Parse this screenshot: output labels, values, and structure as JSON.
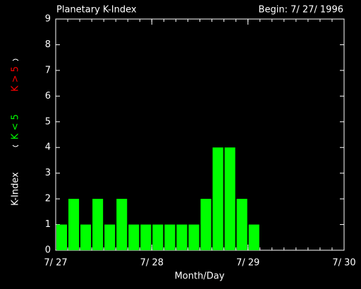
{
  "chart_data": {
    "type": "bar",
    "title": "Planetary K-Index",
    "subtitle": "Begin: 7/ 27/ 1996",
    "xlabel": "Month/Day",
    "ylabel": "K-Index",
    "legend": [
      {
        "name": "K < 5",
        "color": "#00ff00"
      },
      {
        "name": "K > 5",
        "color": "#ff0000"
      }
    ],
    "categories": [
      null,
      null,
      null,
      null,
      null,
      null,
      null,
      null,
      null,
      null,
      null,
      null,
      null,
      null,
      null,
      null,
      null,
      null,
      null,
      null,
      null,
      null,
      null,
      null
    ],
    "values": [
      1,
      2,
      1,
      2,
      1,
      2,
      1,
      1,
      1,
      1,
      1,
      1,
      2,
      4,
      4,
      2,
      1,
      null,
      null,
      null,
      null,
      null,
      null,
      null
    ],
    "color": "#00ff00",
    "xticks": [
      "7/ 27",
      "7/ 28",
      "7/ 29",
      "7/ 30"
    ],
    "ylim": [
      0,
      9
    ],
    "yticks": [
      0,
      1,
      2,
      3,
      4,
      5,
      6,
      7,
      8,
      9
    ]
  }
}
